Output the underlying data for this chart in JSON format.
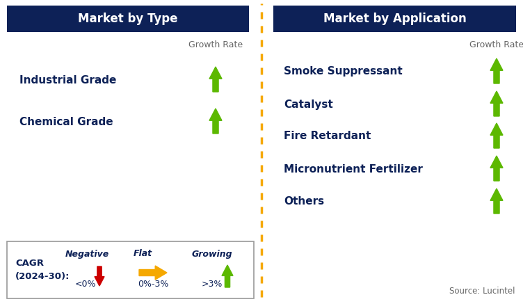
{
  "title_left": "Market by Type",
  "title_right": "Market by Application",
  "header_bg_color": "#0d2157",
  "header_text_color": "#ffffff",
  "left_items": [
    "Industrial Grade",
    "Chemical Grade"
  ],
  "right_items": [
    "Smoke Suppressant",
    "Catalyst",
    "Fire Retardant",
    "Micronutrient Fertilizer",
    "Others"
  ],
  "item_text_color": "#0d2157",
  "growth_rate_label": "Growth Rate",
  "growth_rate_color": "#666666",
  "arrow_up_color": "#5cb800",
  "dashed_line_color": "#f5a800",
  "legend_cagr_label": "CAGR",
  "legend_cagr_years": "(2024-30):",
  "legend_negative_label": "Negative",
  "legend_negative_range": "<0%",
  "legend_flat_label": "Flat",
  "legend_flat_range": "0%-3%",
  "legend_growing_label": "Growing",
  "legend_growing_range": ">3%",
  "legend_negative_color": "#cc0000",
  "legend_flat_color": "#f5a800",
  "legend_growing_color": "#5cb800",
  "source_text": "Source: Lucintel",
  "source_color": "#666666",
  "fig_width": 7.52,
  "fig_height": 4.37,
  "dpi": 100
}
